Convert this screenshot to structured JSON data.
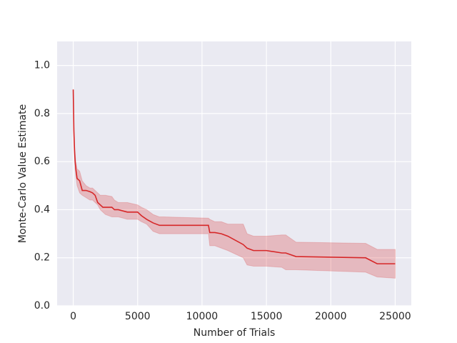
{
  "chart_data": {
    "type": "line",
    "xlabel": "Number of Trials",
    "ylabel": "Monte-Carlo Value Estimate",
    "x": [
      0,
      50,
      100,
      150,
      200,
      300,
      500,
      700,
      1000,
      1300,
      1500,
      1700,
      1900,
      2100,
      2300,
      2500,
      3000,
      3200,
      3500,
      4200,
      5000,
      5300,
      5700,
      6200,
      6700,
      7000,
      10500,
      10600,
      11000,
      11500,
      12000,
      13200,
      13500,
      14000,
      15000,
      16200,
      16500,
      17300,
      22700,
      23600,
      25000
    ],
    "series": [
      {
        "color": "#d62728",
        "values": [
          0.9,
          0.73,
          0.65,
          0.6,
          0.57,
          0.53,
          0.52,
          0.48,
          0.48,
          0.475,
          0.47,
          0.46,
          0.43,
          0.42,
          0.41,
          0.41,
          0.41,
          0.4,
          0.4,
          0.39,
          0.39,
          0.375,
          0.36,
          0.345,
          0.335,
          0.335,
          0.335,
          0.305,
          0.305,
          0.3,
          0.29,
          0.255,
          0.24,
          0.23,
          0.23,
          0.22,
          0.22,
          0.205,
          0.2,
          0.175,
          0.175
        ],
        "upper": [
          0.9,
          0.75,
          0.68,
          0.63,
          0.6,
          0.57,
          0.56,
          0.52,
          0.5,
          0.49,
          0.49,
          0.48,
          0.47,
          0.46,
          0.46,
          0.46,
          0.455,
          0.44,
          0.43,
          0.43,
          0.42,
          0.41,
          0.4,
          0.38,
          0.37,
          0.37,
          0.365,
          0.36,
          0.35,
          0.35,
          0.34,
          0.34,
          0.3,
          0.29,
          0.29,
          0.295,
          0.295,
          0.265,
          0.26,
          0.235,
          0.235
        ],
        "lower": [
          0.9,
          0.7,
          0.62,
          0.57,
          0.54,
          0.5,
          0.47,
          0.46,
          0.45,
          0.44,
          0.44,
          0.43,
          0.42,
          0.4,
          0.39,
          0.38,
          0.37,
          0.37,
          0.37,
          0.36,
          0.36,
          0.35,
          0.34,
          0.31,
          0.3,
          0.3,
          0.3,
          0.25,
          0.25,
          0.24,
          0.23,
          0.2,
          0.17,
          0.165,
          0.165,
          0.16,
          0.15,
          0.15,
          0.14,
          0.12,
          0.115
        ]
      }
    ],
    "xlim": [
      -1250,
      26250
    ],
    "ylim": [
      0,
      1.1
    ],
    "xticks": [
      0,
      5000,
      10000,
      15000,
      20000,
      25000
    ],
    "yticks": [
      {
        "value": 0,
        "label": "0.0"
      },
      0.2,
      0.4,
      0.6,
      0.8,
      {
        "value": 1,
        "label": "1.0"
      }
    ],
    "grid": true
  }
}
